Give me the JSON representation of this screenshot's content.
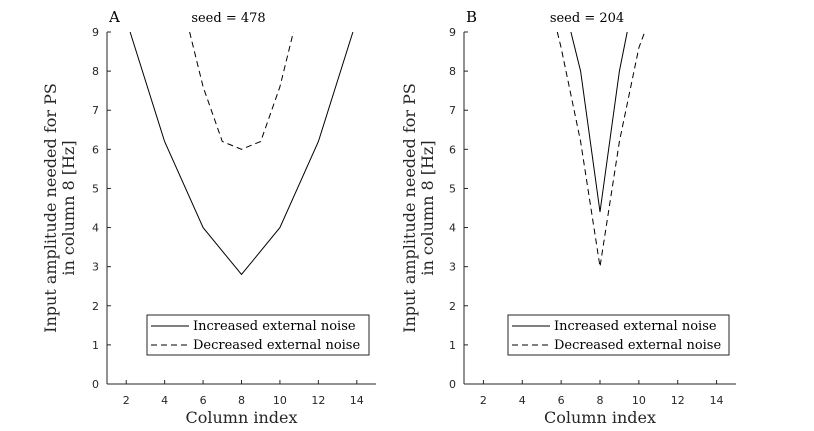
{
  "chart_data": [
    {
      "type": "line",
      "panel_label": "A",
      "title": "seed = 478",
      "xlabel": "Column index",
      "ylabel": [
        "Input amplitude needed for PS",
        "in column 8 [Hz]"
      ],
      "xlim": [
        1,
        15
      ],
      "ylim": [
        0,
        9
      ],
      "xticks": [
        2,
        4,
        6,
        8,
        10,
        12,
        14
      ],
      "yticks": [
        0,
        1,
        2,
        3,
        4,
        5,
        6,
        7,
        8,
        9
      ],
      "grid": false,
      "legend_position": "bottom-right",
      "series": [
        {
          "name": "Increased external noise",
          "style": "solid",
          "x": [
            2.2,
            4,
            6,
            8,
            10,
            12,
            13.8
          ],
          "y": [
            9,
            6.2,
            4.0,
            2.8,
            4.0,
            6.2,
            9
          ]
        },
        {
          "name": "Decreased external noise",
          "style": "dashed",
          "x": [
            5.3,
            6,
            7,
            8,
            9,
            10,
            10.7
          ],
          "y": [
            9,
            7.6,
            6.2,
            6.0,
            6.2,
            7.6,
            9
          ]
        }
      ]
    },
    {
      "type": "line",
      "panel_label": "B",
      "title": "seed = 204",
      "xlabel": "Column index",
      "ylabel": [
        "Input amplitude needed for PS",
        "in column 8 [Hz]"
      ],
      "xlim": [
        1,
        15
      ],
      "ylim": [
        0,
        9
      ],
      "xticks": [
        2,
        4,
        6,
        8,
        10,
        12,
        14
      ],
      "yticks": [
        0,
        1,
        2,
        3,
        4,
        5,
        6,
        7,
        8,
        9
      ],
      "grid": false,
      "legend_position": "bottom-right",
      "series": [
        {
          "name": "Increased external noise",
          "style": "solid",
          "x": [
            6.5,
            7,
            8,
            9,
            9.4
          ],
          "y": [
            9,
            8.0,
            4.4,
            8.0,
            9
          ]
        },
        {
          "name": "Decreased external noise",
          "style": "dashed",
          "x": [
            5.8,
            6,
            7,
            8,
            9,
            10,
            10.3
          ],
          "y": [
            9,
            8.6,
            6.2,
            3.0,
            6.2,
            8.6,
            9
          ]
        }
      ]
    }
  ]
}
